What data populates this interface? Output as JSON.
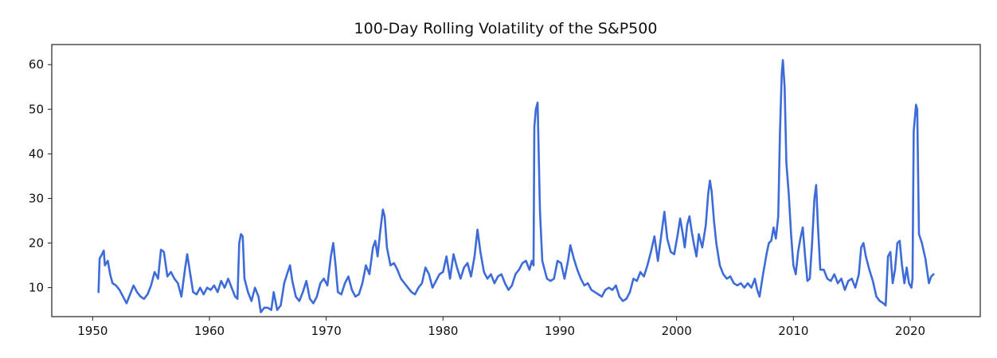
{
  "chart_data": {
    "type": "line",
    "title": "100-Day Rolling Volatility of the S&P500",
    "xlabel": "",
    "ylabel": "",
    "xlim": [
      1946.5,
      2026.0
    ],
    "ylim": [
      3.5,
      64.5
    ],
    "xticks": [
      1950,
      1960,
      1970,
      1980,
      1990,
      2000,
      2010,
      2020
    ],
    "yticks": [
      10,
      20,
      30,
      40,
      50,
      60
    ],
    "grid": false,
    "series": [
      {
        "color": "#3d6bd8",
        "points": [
          [
            1950.5,
            9.0
          ],
          [
            1950.6,
            16.5
          ],
          [
            1950.8,
            17.5
          ],
          [
            1950.95,
            18.3
          ],
          [
            1951.05,
            15.0
          ],
          [
            1951.3,
            16.0
          ],
          [
            1951.5,
            13.0
          ],
          [
            1951.7,
            11.0
          ],
          [
            1952.0,
            10.5
          ],
          [
            1952.3,
            9.5
          ],
          [
            1952.6,
            8.0
          ],
          [
            1952.9,
            6.5
          ],
          [
            1953.2,
            8.5
          ],
          [
            1953.5,
            10.5
          ],
          [
            1953.8,
            9.0
          ],
          [
            1954.1,
            8.0
          ],
          [
            1954.4,
            7.5
          ],
          [
            1954.7,
            8.5
          ],
          [
            1955.0,
            10.5
          ],
          [
            1955.3,
            13.5
          ],
          [
            1955.6,
            12.0
          ],
          [
            1955.85,
            18.5
          ],
          [
            1956.1,
            18.0
          ],
          [
            1956.4,
            12.5
          ],
          [
            1956.7,
            13.5
          ],
          [
            1957.0,
            12.0
          ],
          [
            1957.3,
            11.0
          ],
          [
            1957.6,
            8.0
          ],
          [
            1957.9,
            14.0
          ],
          [
            1958.1,
            17.5
          ],
          [
            1958.3,
            14.0
          ],
          [
            1958.6,
            9.0
          ],
          [
            1958.9,
            8.5
          ],
          [
            1959.2,
            10.0
          ],
          [
            1959.5,
            8.5
          ],
          [
            1959.8,
            10.0
          ],
          [
            1960.1,
            9.5
          ],
          [
            1960.4,
            10.5
          ],
          [
            1960.7,
            9.0
          ],
          [
            1961.0,
            11.5
          ],
          [
            1961.3,
            10.0
          ],
          [
            1961.6,
            12.0
          ],
          [
            1961.9,
            10.0
          ],
          [
            1962.2,
            8.0
          ],
          [
            1962.4,
            7.5
          ],
          [
            1962.55,
            20.0
          ],
          [
            1962.7,
            22.0
          ],
          [
            1962.85,
            21.5
          ],
          [
            1963.0,
            12.0
          ],
          [
            1963.3,
            9.0
          ],
          [
            1963.6,
            7.0
          ],
          [
            1963.9,
            10.0
          ],
          [
            1964.2,
            8.0
          ],
          [
            1964.4,
            4.5
          ],
          [
            1964.7,
            5.5
          ],
          [
            1965.0,
            5.5
          ],
          [
            1965.3,
            5.0
          ],
          [
            1965.5,
            9.0
          ],
          [
            1965.8,
            5.0
          ],
          [
            1966.1,
            6.0
          ],
          [
            1966.4,
            11.0
          ],
          [
            1966.7,
            13.5
          ],
          [
            1966.9,
            15.0
          ],
          [
            1967.1,
            11.5
          ],
          [
            1967.4,
            8.0
          ],
          [
            1967.7,
            7.0
          ],
          [
            1968.0,
            9.0
          ],
          [
            1968.3,
            11.5
          ],
          [
            1968.6,
            7.5
          ],
          [
            1968.9,
            6.5
          ],
          [
            1969.2,
            8.0
          ],
          [
            1969.5,
            11.0
          ],
          [
            1969.8,
            12.0
          ],
          [
            1970.1,
            10.5
          ],
          [
            1970.4,
            17.0
          ],
          [
            1970.6,
            20.0
          ],
          [
            1970.8,
            15.0
          ],
          [
            1971.0,
            9.0
          ],
          [
            1971.3,
            8.5
          ],
          [
            1971.6,
            11.0
          ],
          [
            1971.9,
            12.5
          ],
          [
            1972.2,
            9.5
          ],
          [
            1972.5,
            8.0
          ],
          [
            1972.8,
            8.5
          ],
          [
            1973.1,
            11.0
          ],
          [
            1973.4,
            15.0
          ],
          [
            1973.7,
            13.0
          ],
          [
            1974.0,
            19.0
          ],
          [
            1974.2,
            20.5
          ],
          [
            1974.4,
            17.0
          ],
          [
            1974.6,
            22.0
          ],
          [
            1974.85,
            27.5
          ],
          [
            1975.0,
            26.0
          ],
          [
            1975.2,
            19.0
          ],
          [
            1975.5,
            15.0
          ],
          [
            1975.8,
            15.5
          ],
          [
            1976.1,
            14.0
          ],
          [
            1976.4,
            12.0
          ],
          [
            1976.7,
            11.0
          ],
          [
            1977.0,
            10.0
          ],
          [
            1977.3,
            9.0
          ],
          [
            1977.6,
            8.5
          ],
          [
            1977.9,
            10.0
          ],
          [
            1978.2,
            11.0
          ],
          [
            1978.5,
            14.5
          ],
          [
            1978.8,
            13.0
          ],
          [
            1979.1,
            10.0
          ],
          [
            1979.4,
            11.5
          ],
          [
            1979.7,
            13.0
          ],
          [
            1980.0,
            13.5
          ],
          [
            1980.3,
            17.0
          ],
          [
            1980.6,
            12.0
          ],
          [
            1980.9,
            17.5
          ],
          [
            1981.2,
            14.5
          ],
          [
            1981.5,
            12.0
          ],
          [
            1981.8,
            14.5
          ],
          [
            1982.1,
            15.5
          ],
          [
            1982.4,
            12.5
          ],
          [
            1982.7,
            17.0
          ],
          [
            1982.95,
            23.0
          ],
          [
            1983.2,
            18.0
          ],
          [
            1983.5,
            13.5
          ],
          [
            1983.8,
            12.0
          ],
          [
            1984.1,
            13.0
          ],
          [
            1984.4,
            11.0
          ],
          [
            1984.7,
            12.5
          ],
          [
            1985.0,
            13.0
          ],
          [
            1985.3,
            11.0
          ],
          [
            1985.6,
            9.5
          ],
          [
            1985.9,
            10.5
          ],
          [
            1986.2,
            13.0
          ],
          [
            1986.5,
            14.0
          ],
          [
            1986.8,
            15.5
          ],
          [
            1987.1,
            16.0
          ],
          [
            1987.4,
            14.0
          ],
          [
            1987.6,
            16.0
          ],
          [
            1987.75,
            15.0
          ],
          [
            1987.82,
            46.0
          ],
          [
            1987.95,
            50.0
          ],
          [
            1988.1,
            51.5
          ],
          [
            1988.3,
            27.0
          ],
          [
            1988.5,
            16.0
          ],
          [
            1988.7,
            14.0
          ],
          [
            1988.9,
            12.0
          ],
          [
            1989.2,
            11.5
          ],
          [
            1989.5,
            12.0
          ],
          [
            1989.8,
            16.0
          ],
          [
            1990.1,
            15.5
          ],
          [
            1990.4,
            12.0
          ],
          [
            1990.7,
            16.0
          ],
          [
            1990.9,
            19.5
          ],
          [
            1991.2,
            16.5
          ],
          [
            1991.5,
            14.0
          ],
          [
            1991.8,
            12.0
          ],
          [
            1992.1,
            10.5
          ],
          [
            1992.4,
            11.0
          ],
          [
            1992.7,
            9.5
          ],
          [
            1993.0,
            9.0
          ],
          [
            1993.3,
            8.5
          ],
          [
            1993.6,
            8.0
          ],
          [
            1993.9,
            9.5
          ],
          [
            1994.2,
            10.0
          ],
          [
            1994.5,
            9.5
          ],
          [
            1994.8,
            10.5
          ],
          [
            1995.1,
            8.0
          ],
          [
            1995.4,
            7.0
          ],
          [
            1995.7,
            7.5
          ],
          [
            1996.0,
            9.0
          ],
          [
            1996.3,
            12.0
          ],
          [
            1996.6,
            11.5
          ],
          [
            1996.9,
            13.5
          ],
          [
            1997.2,
            12.5
          ],
          [
            1997.5,
            15.0
          ],
          [
            1997.8,
            18.0
          ],
          [
            1998.1,
            21.5
          ],
          [
            1998.4,
            16.0
          ],
          [
            1998.7,
            22.0
          ],
          [
            1998.95,
            27.0
          ],
          [
            1999.2,
            21.0
          ],
          [
            1999.5,
            18.0
          ],
          [
            1999.8,
            17.5
          ],
          [
            2000.1,
            22.0
          ],
          [
            2000.3,
            25.5
          ],
          [
            2000.5,
            22.5
          ],
          [
            2000.7,
            19.0
          ],
          [
            2000.9,
            24.0
          ],
          [
            2001.1,
            26.0
          ],
          [
            2001.3,
            22.5
          ],
          [
            2001.5,
            19.5
          ],
          [
            2001.7,
            17.0
          ],
          [
            2001.9,
            22.0
          ],
          [
            2002.2,
            19.0
          ],
          [
            2002.5,
            24.0
          ],
          [
            2002.7,
            31.0
          ],
          [
            2002.85,
            34.0
          ],
          [
            2003.0,
            31.5
          ],
          [
            2003.2,
            25.0
          ],
          [
            2003.4,
            20.0
          ],
          [
            2003.7,
            15.0
          ],
          [
            2004.0,
            13.0
          ],
          [
            2004.3,
            12.0
          ],
          [
            2004.6,
            12.5
          ],
          [
            2004.9,
            11.0
          ],
          [
            2005.2,
            10.5
          ],
          [
            2005.5,
            11.0
          ],
          [
            2005.8,
            10.0
          ],
          [
            2006.1,
            11.0
          ],
          [
            2006.4,
            10.0
          ],
          [
            2006.7,
            12.0
          ],
          [
            2006.9,
            9.5
          ],
          [
            2007.1,
            8.0
          ],
          [
            2007.4,
            13.0
          ],
          [
            2007.7,
            17.5
          ],
          [
            2007.9,
            20.0
          ],
          [
            2008.1,
            20.5
          ],
          [
            2008.3,
            23.5
          ],
          [
            2008.5,
            21.0
          ],
          [
            2008.7,
            26.0
          ],
          [
            2008.85,
            45.0
          ],
          [
            2009.0,
            58.0
          ],
          [
            2009.1,
            61.0
          ],
          [
            2009.25,
            55.0
          ],
          [
            2009.4,
            38.0
          ],
          [
            2009.6,
            31.0
          ],
          [
            2009.8,
            22.0
          ],
          [
            2010.0,
            15.0
          ],
          [
            2010.2,
            13.0
          ],
          [
            2010.4,
            18.0
          ],
          [
            2010.6,
            21.0
          ],
          [
            2010.8,
            23.5
          ],
          [
            2011.0,
            17.0
          ],
          [
            2011.2,
            11.5
          ],
          [
            2011.4,
            12.0
          ],
          [
            2011.6,
            20.0
          ],
          [
            2011.8,
            30.0
          ],
          [
            2011.95,
            33.0
          ],
          [
            2012.1,
            24.0
          ],
          [
            2012.3,
            14.0
          ],
          [
            2012.6,
            14.0
          ],
          [
            2012.9,
            12.0
          ],
          [
            2013.2,
            11.5
          ],
          [
            2013.5,
            13.0
          ],
          [
            2013.8,
            11.0
          ],
          [
            2014.1,
            12.0
          ],
          [
            2014.4,
            9.5
          ],
          [
            2014.7,
            11.5
          ],
          [
            2015.0,
            12.0
          ],
          [
            2015.3,
            10.0
          ],
          [
            2015.6,
            13.0
          ],
          [
            2015.8,
            19.0
          ],
          [
            2016.0,
            20.0
          ],
          [
            2016.2,
            17.0
          ],
          [
            2016.5,
            14.0
          ],
          [
            2016.8,
            11.5
          ],
          [
            2017.1,
            8.0
          ],
          [
            2017.4,
            7.0
          ],
          [
            2017.7,
            6.5
          ],
          [
            2017.9,
            6.0
          ],
          [
            2018.1,
            17.0
          ],
          [
            2018.3,
            18.0
          ],
          [
            2018.5,
            11.0
          ],
          [
            2018.7,
            14.0
          ],
          [
            2018.9,
            20.0
          ],
          [
            2019.1,
            20.5
          ],
          [
            2019.3,
            15.0
          ],
          [
            2019.5,
            11.0
          ],
          [
            2019.7,
            14.5
          ],
          [
            2019.9,
            11.0
          ],
          [
            2020.1,
            10.0
          ],
          [
            2020.2,
            12.0
          ],
          [
            2020.3,
            45.0
          ],
          [
            2020.5,
            51.0
          ],
          [
            2020.6,
            50.0
          ],
          [
            2020.75,
            22.0
          ],
          [
            2021.0,
            20.0
          ],
          [
            2021.3,
            16.5
          ],
          [
            2021.6,
            11.0
          ],
          [
            2021.8,
            12.5
          ],
          [
            2022.0,
            13.0
          ]
        ]
      }
    ]
  }
}
